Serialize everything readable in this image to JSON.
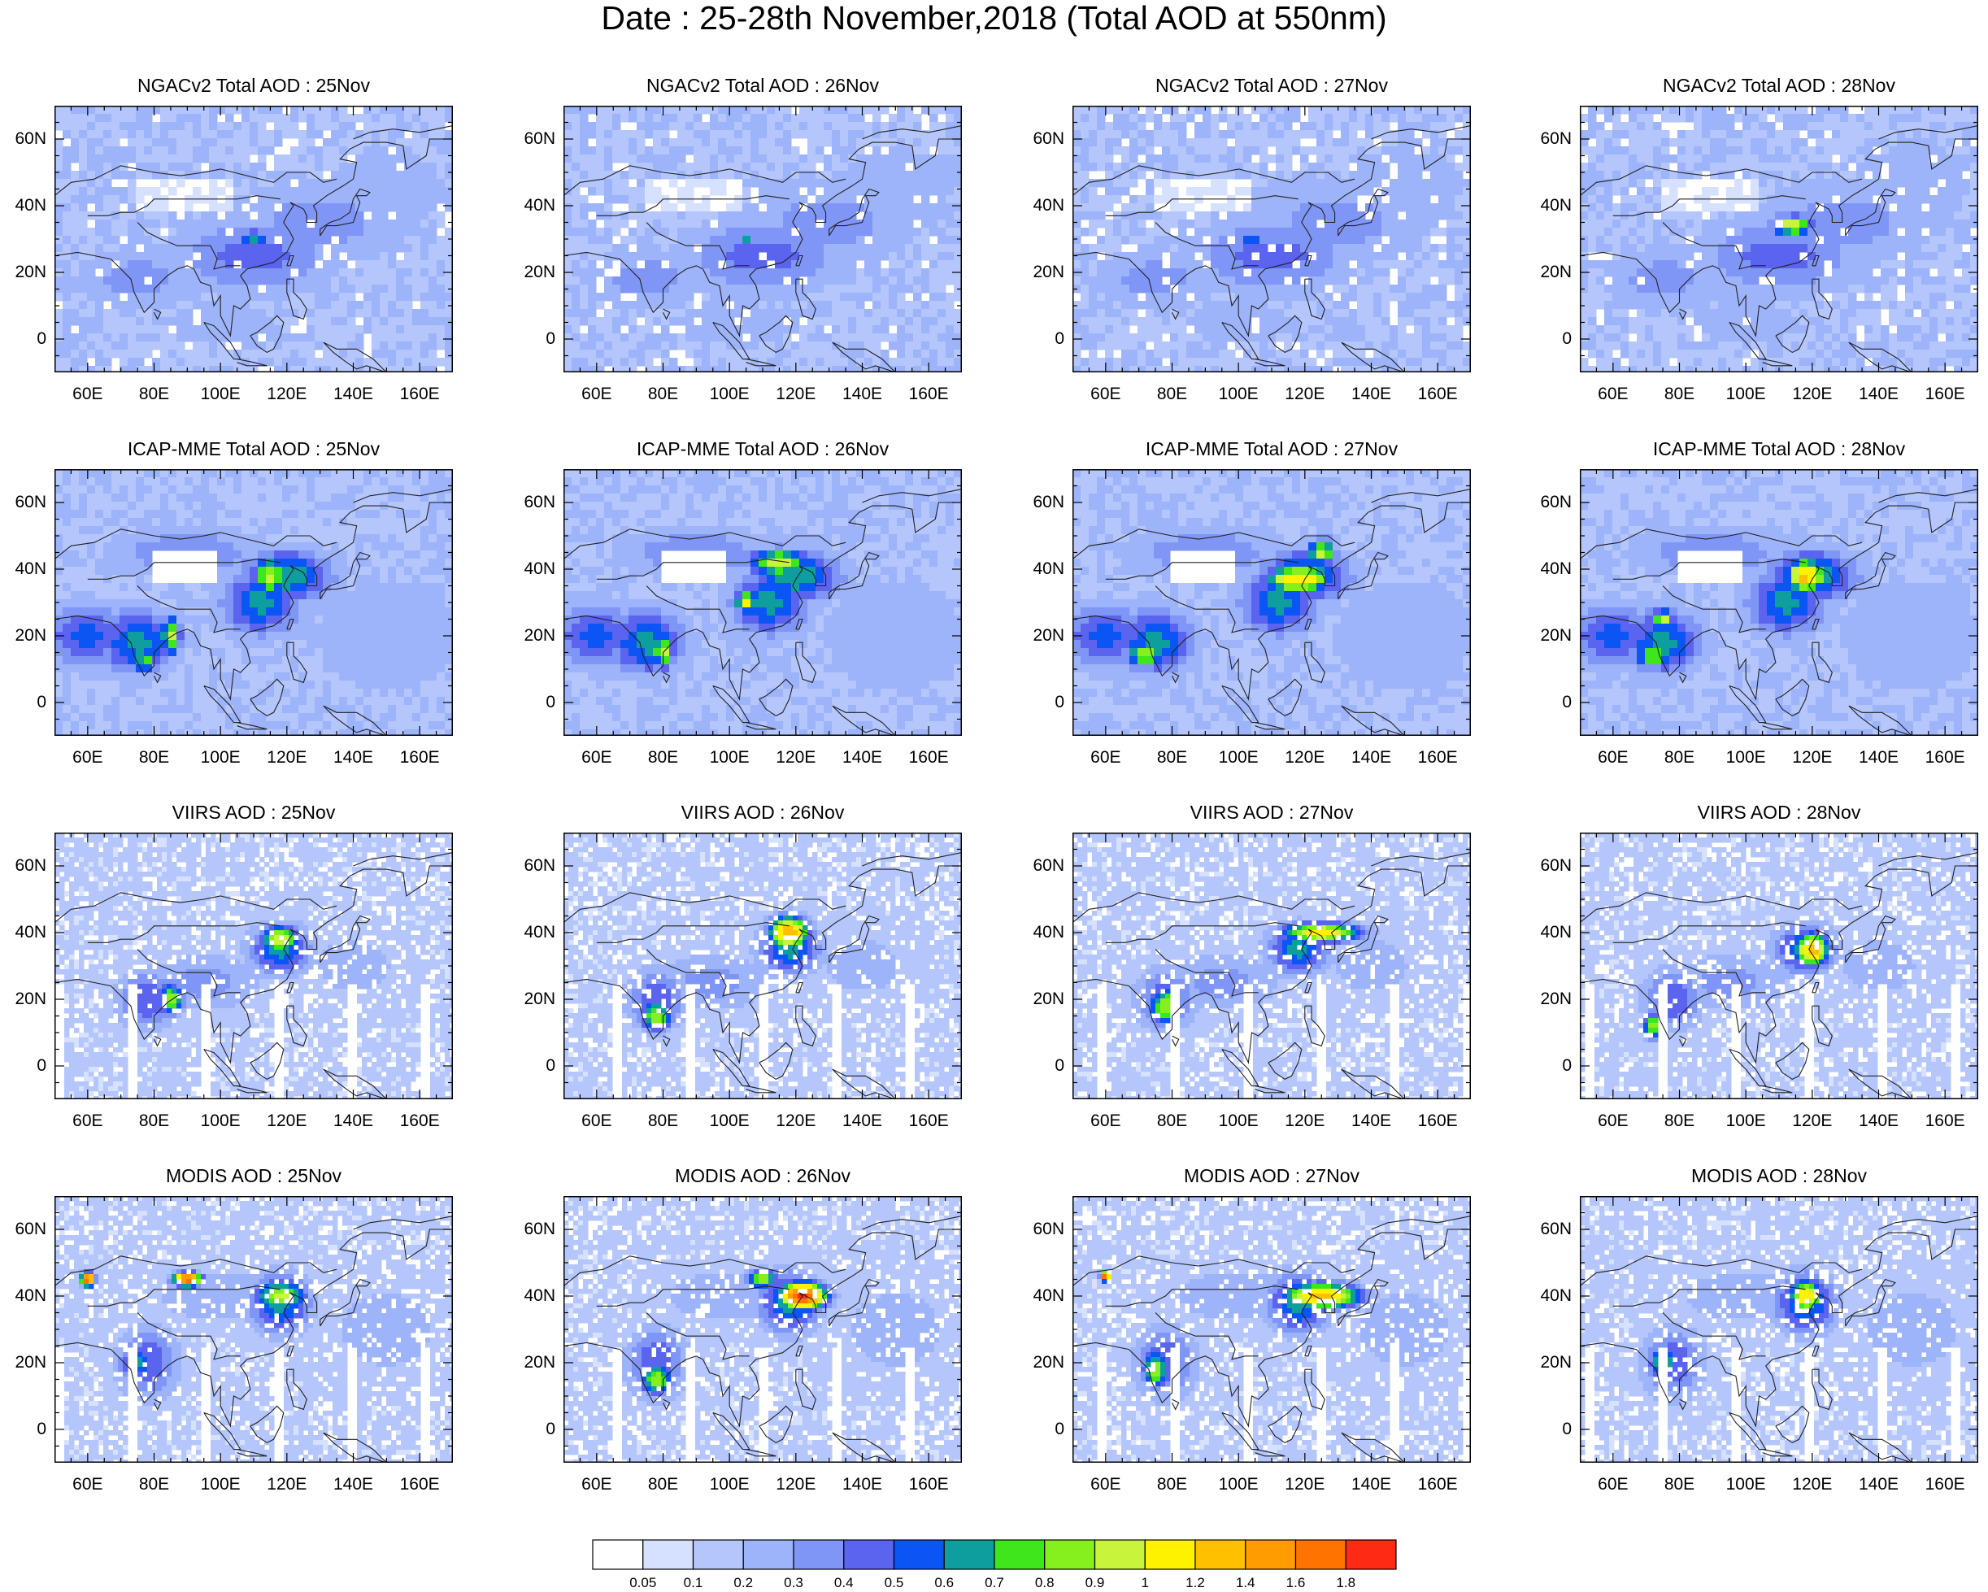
{
  "title": "Date : 25-28th November,2018 (Total AOD at 550nm)",
  "axes": {
    "lat_ticks": [
      "60N",
      "40N",
      "20N",
      "0"
    ],
    "lat_values": [
      60,
      40,
      20,
      0
    ],
    "lon_ticks": [
      "60E",
      "80E",
      "100E",
      "120E",
      "140E",
      "160E"
    ],
    "lon_values": [
      60,
      80,
      100,
      120,
      140,
      160
    ],
    "lon_range": [
      50,
      170
    ],
    "lat_range": [
      -10,
      70
    ]
  },
  "rows": [
    {
      "product": "NGACv2",
      "panels": [
        "NGACv2 Total AOD : 25Nov",
        "NGACv2 Total AOD : 26Nov",
        "NGACv2 Total AOD : 27Nov",
        "NGACv2 Total AOD : 28Nov"
      ]
    },
    {
      "product": "ICAP-MME",
      "panels": [
        "ICAP-MME Total AOD : 25Nov",
        "ICAP-MME Total AOD : 26Nov",
        "ICAP-MME Total AOD : 27Nov",
        "ICAP-MME Total AOD : 28Nov"
      ]
    },
    {
      "product": "VIIRS",
      "panels": [
        "VIIRS AOD : 25Nov",
        "VIIRS AOD : 26Nov",
        "VIIRS AOD : 27Nov",
        "VIIRS AOD : 28Nov"
      ]
    },
    {
      "product": "MODIS",
      "panels": [
        "MODIS AOD : 25Nov",
        "MODIS AOD : 26Nov",
        "MODIS AOD : 27Nov",
        "MODIS AOD : 28Nov"
      ]
    }
  ],
  "colorbar": {
    "labels": [
      "0.05",
      "0.1",
      "0.2",
      "0.3",
      "0.4",
      "0.5",
      "0.6",
      "0.7",
      "0.8",
      "0.9",
      "1",
      "1.2",
      "1.4",
      "1.6",
      "1.8"
    ],
    "colors": [
      "#ffffff",
      "#d6e0ff",
      "#b4c6fb",
      "#9db3fa",
      "#8096f6",
      "#5a64ee",
      "#0b55f4",
      "#0f9e9e",
      "#3ee61c",
      "#86f01e",
      "#c8f53c",
      "#fff200",
      "#ffc000",
      "#ff9d00",
      "#ff7400",
      "#ff2a14"
    ]
  }
}
